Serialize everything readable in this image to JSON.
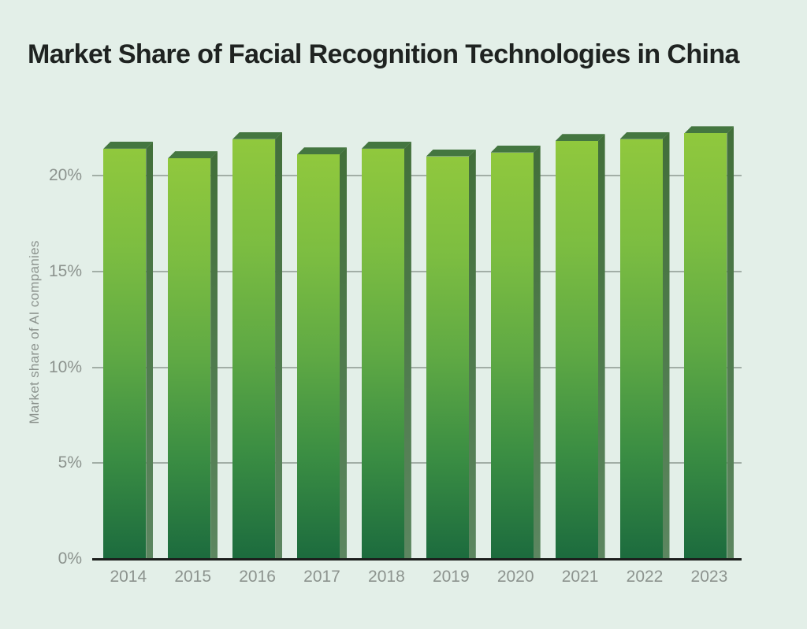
{
  "chart_data": {
    "type": "bar",
    "title": "Market Share of Facial Recognition Technologies in China",
    "xlabel": "",
    "ylabel": "Market share of AI companies",
    "unit": "%",
    "categories": [
      "2014",
      "2015",
      "2016",
      "2017",
      "2018",
      "2019",
      "2020",
      "2021",
      "2022",
      "2023"
    ],
    "values": [
      21.4,
      20.9,
      21.9,
      21.1,
      21.4,
      21.0,
      21.2,
      21.8,
      21.9,
      22.2
    ],
    "ylim": [
      0,
      20
    ],
    "yticks": [
      {
        "value": 0,
        "label": "0%"
      },
      {
        "value": 5,
        "label": "5%"
      },
      {
        "value": 10,
        "label": "10%"
      },
      {
        "value": 15,
        "label": "15%"
      },
      {
        "value": 20,
        "label": "20%"
      }
    ],
    "grid": "horizontal",
    "legend": "none",
    "colors": {
      "background": "#e3efe8",
      "title_text": "#1f2321",
      "label_text": "#8c938e",
      "gridline": "#a2aea6",
      "axis": "#1b1e1c",
      "bar_gradient_stops": [
        "#90c83d",
        "#7cbd41",
        "#5fa944",
        "#3a8d43",
        "#1c6b3e"
      ],
      "bar_top_face": "#447640",
      "bar_side_top": "#426f3a",
      "bar_side_bottom": "#5c8660"
    }
  }
}
